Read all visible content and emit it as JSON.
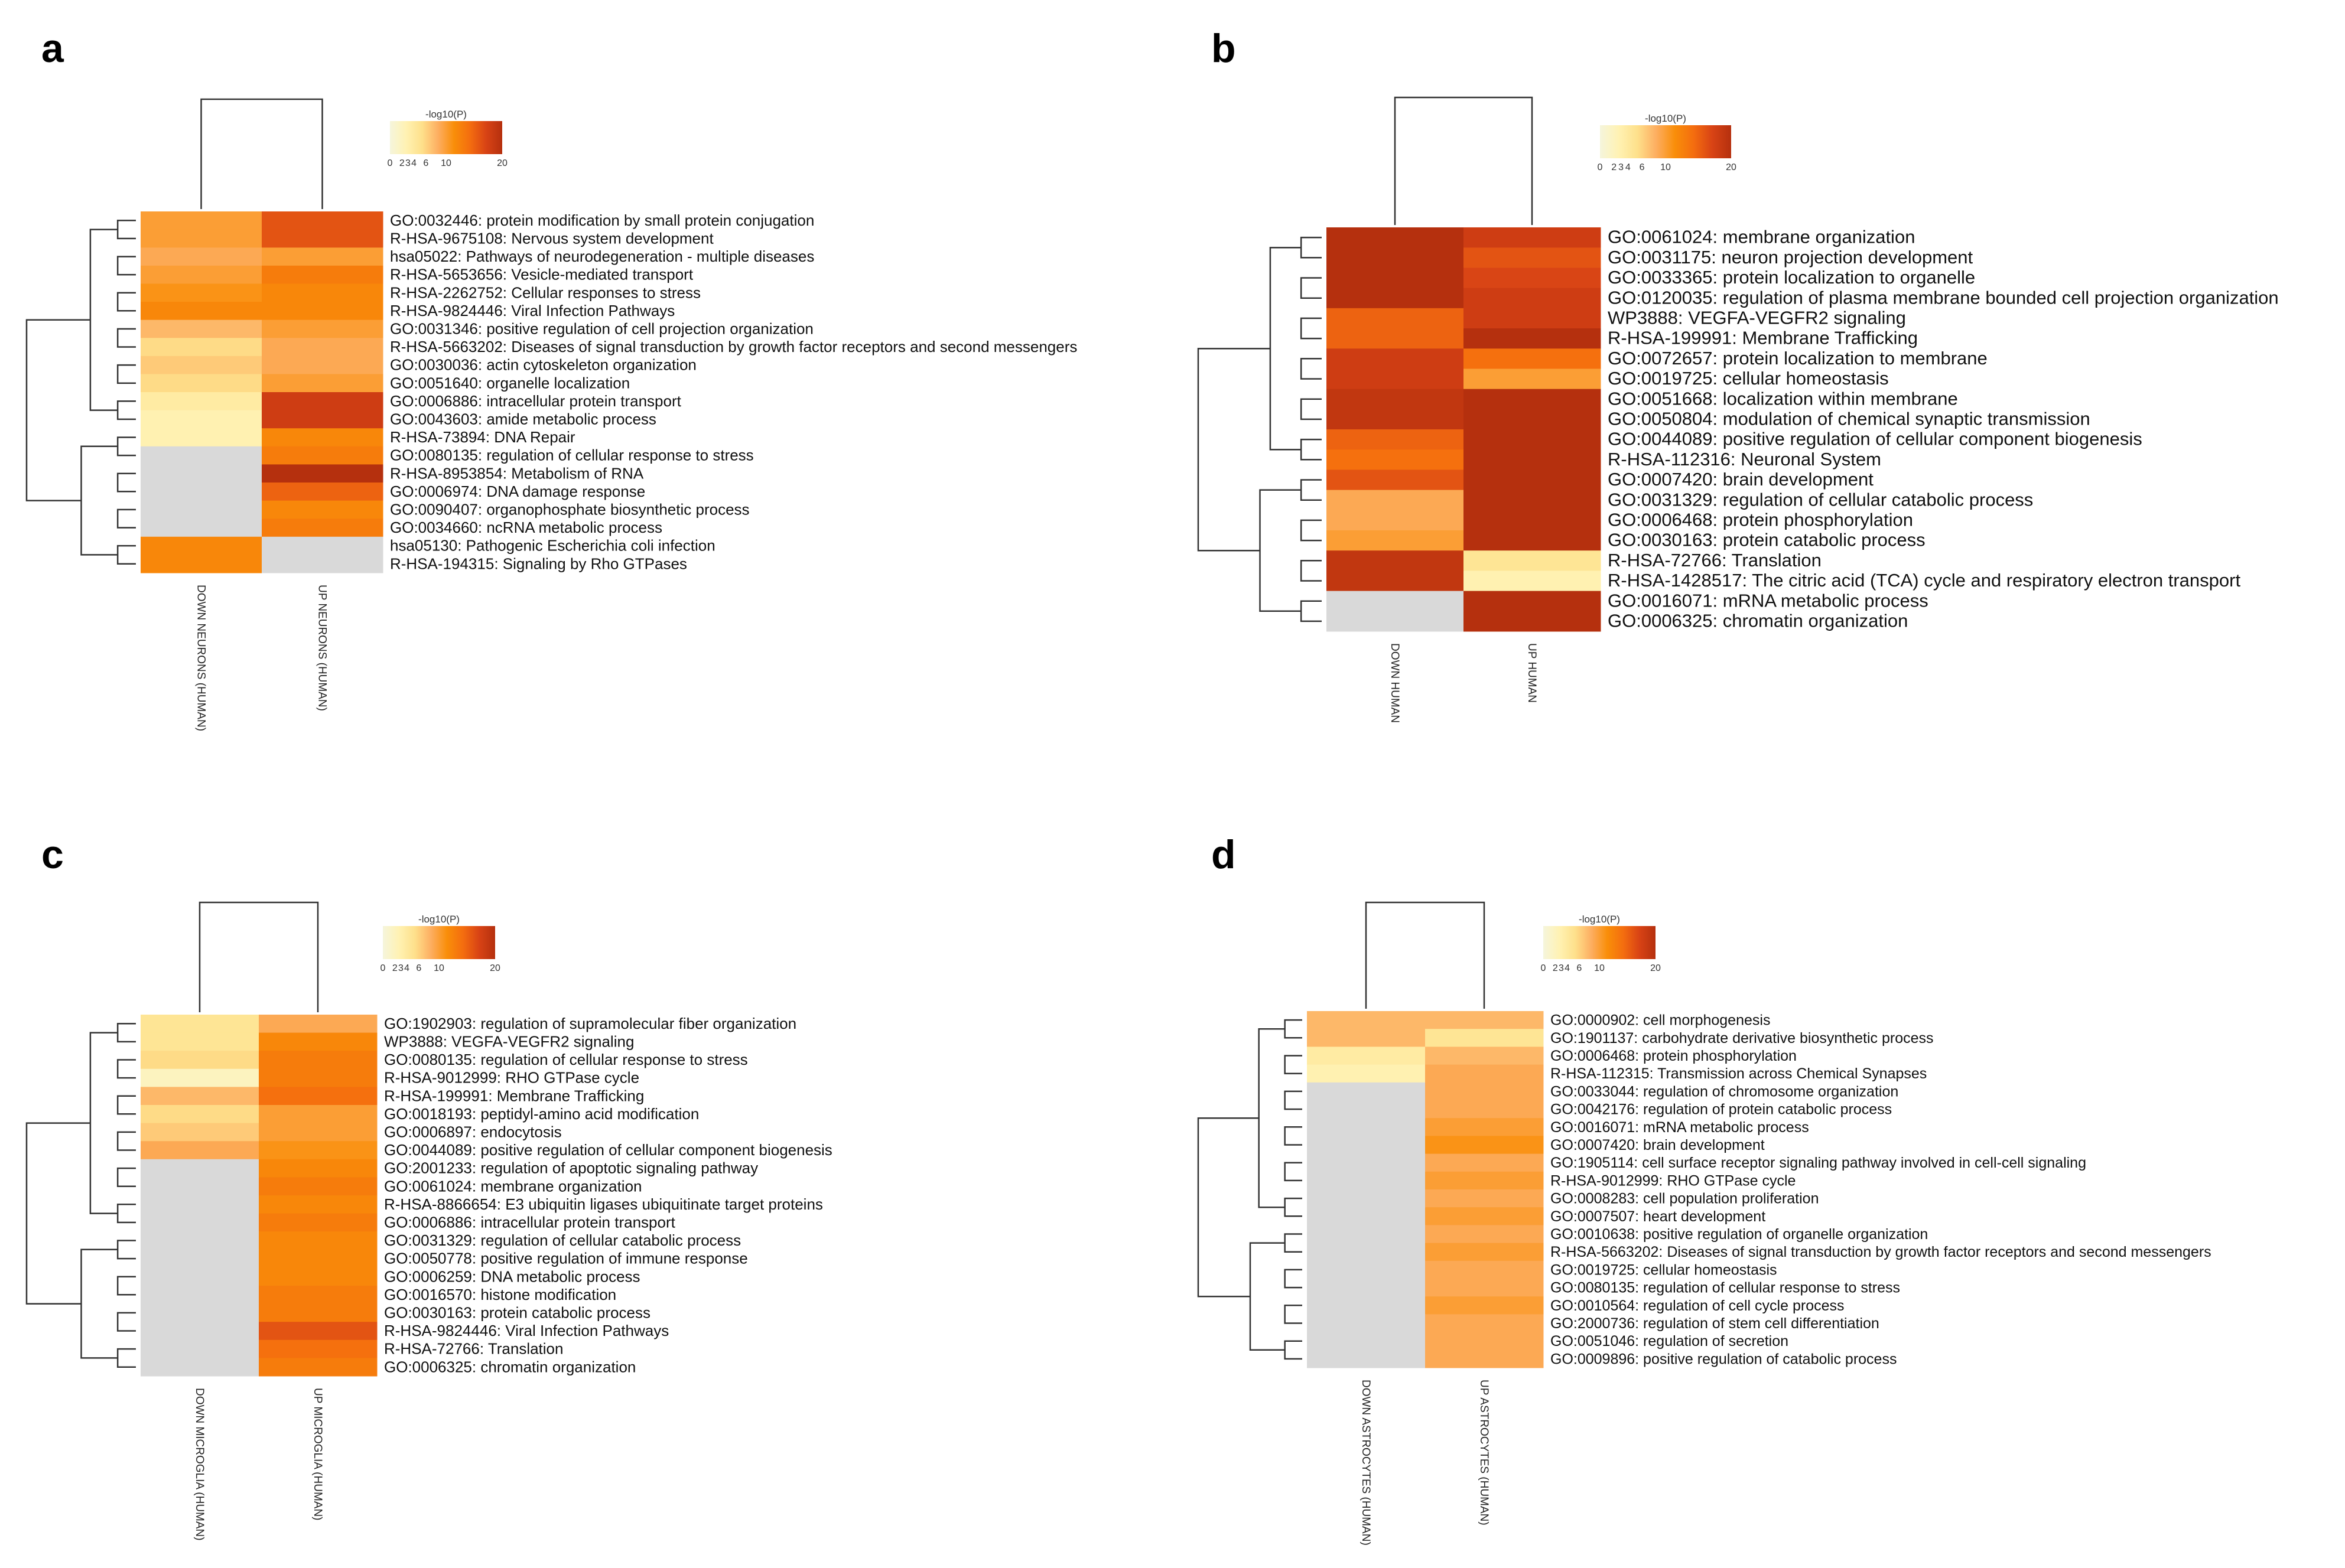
{
  "chart_data": [
    {
      "panel": "a",
      "type": "heatmap",
      "colorbar": {
        "title": "-log10(P)",
        "ticks": [
          "0",
          "2",
          "3",
          "4",
          "6",
          "10",
          "20"
        ],
        "range": [
          0,
          20
        ]
      },
      "columns": [
        "DOWN NEURONS (HUMAN)",
        "UP NEURONS (HUMAN)"
      ],
      "rows": [
        {
          "term": "GO:0032446: protein modification by small protein conjugation",
          "values": [
            10,
            16
          ]
        },
        {
          "term": "R-HSA-9675108: Nervous system development",
          "values": [
            10,
            16
          ]
        },
        {
          "term": "hsa05022: Pathways of neurodegeneration - multiple diseases",
          "values": [
            9,
            10
          ]
        },
        {
          "term": "R-HSA-5653656: Vesicle-mediated transport",
          "values": [
            10,
            13
          ]
        },
        {
          "term": "R-HSA-2262752: Cellular responses to stress",
          "values": [
            11,
            12
          ]
        },
        {
          "term": "R-HSA-9824446: Viral Infection Pathways",
          "values": [
            12,
            12
          ]
        },
        {
          "term": "GO:0031346: positive regulation of cell projection organization",
          "values": [
            8,
            10
          ]
        },
        {
          "term": "R-HSA-5663202: Diseases of signal transduction by growth factor receptors and second messengers",
          "values": [
            6,
            9
          ]
        },
        {
          "term": "GO:0030036: actin cytoskeleton organization",
          "values": [
            7,
            9
          ]
        },
        {
          "term": "GO:0051640: organelle localization",
          "values": [
            6,
            10
          ]
        },
        {
          "term": "GO:0006886: intracellular protein transport",
          "values": [
            4,
            18
          ]
        },
        {
          "term": "GO:0043603: amide metabolic process",
          "values": [
            3,
            18
          ]
        },
        {
          "term": "R-HSA-73894: DNA Repair",
          "values": [
            3,
            12
          ]
        },
        {
          "term": "GO:0080135: regulation of cellular response to stress",
          "values": [
            null,
            13
          ]
        },
        {
          "term": "R-HSA-8953854: Metabolism of RNA",
          "values": [
            null,
            20
          ]
        },
        {
          "term": "GO:0006974: DNA damage response",
          "values": [
            null,
            15
          ]
        },
        {
          "term": "GO:0090407: organophosphate biosynthetic process",
          "values": [
            null,
            12
          ]
        },
        {
          "term": "GO:0034660: ncRNA metabolic process",
          "values": [
            null,
            13
          ]
        },
        {
          "term": "hsa05130: Pathogenic Escherichia coli infection",
          "values": [
            12,
            null
          ]
        },
        {
          "term": "R-HSA-194315: Signaling by Rho GTPases",
          "values": [
            12,
            null
          ]
        }
      ]
    },
    {
      "panel": "b",
      "type": "heatmap",
      "colorbar": {
        "title": "-log10(P)",
        "ticks": [
          "0",
          "2",
          "3",
          "4",
          "6",
          "10",
          "20"
        ],
        "range": [
          0,
          20
        ]
      },
      "columns": [
        "DOWN HUMAN",
        "UP HUMAN"
      ],
      "rows": [
        {
          "term": "GO:0061024: membrane organization",
          "values": [
            20,
            18
          ]
        },
        {
          "term": "GO:0031175: neuron projection development",
          "values": [
            20,
            16
          ]
        },
        {
          "term": "GO:0033365: protein localization to organelle",
          "values": [
            20,
            17
          ]
        },
        {
          "term": "GO:0120035: regulation of plasma membrane bounded cell projection organization",
          "values": [
            20,
            18
          ]
        },
        {
          "term": "WP3888: VEGFA-VEGFR2 signaling",
          "values": [
            15,
            18
          ]
        },
        {
          "term": "R-HSA-199991: Membrane Trafficking",
          "values": [
            15,
            20
          ]
        },
        {
          "term": "GO:0072657: protein localization to membrane",
          "values": [
            18,
            14
          ]
        },
        {
          "term": "GO:0019725: cellular homeostasis",
          "values": [
            18,
            10
          ]
        },
        {
          "term": "GO:0051668: localization within membrane",
          "values": [
            19,
            20
          ]
        },
        {
          "term": "GO:0050804: modulation of chemical synaptic transmission",
          "values": [
            19,
            20
          ]
        },
        {
          "term": "GO:0044089: positive regulation of cellular component biogenesis",
          "values": [
            15,
            20
          ]
        },
        {
          "term": "R-HSA-112316: Neuronal System",
          "values": [
            14,
            20
          ]
        },
        {
          "term": "GO:0007420: brain development",
          "values": [
            16,
            20
          ]
        },
        {
          "term": "GO:0031329: regulation of cellular catabolic process",
          "values": [
            9,
            20
          ]
        },
        {
          "term": "GO:0006468: protein phosphorylation",
          "values": [
            9,
            20
          ]
        },
        {
          "term": "GO:0030163: protein catabolic process",
          "values": [
            10,
            20
          ]
        },
        {
          "term": "R-HSA-72766: Translation",
          "values": [
            19,
            5
          ]
        },
        {
          "term": "R-HSA-1428517: The citric acid (TCA) cycle and respiratory electron transport",
          "values": [
            19,
            3
          ]
        },
        {
          "term": "GO:0016071: mRNA metabolic process",
          "values": [
            null,
            20
          ]
        },
        {
          "term": "GO:0006325: chromatin organization",
          "values": [
            null,
            20
          ]
        }
      ]
    },
    {
      "panel": "c",
      "type": "heatmap",
      "colorbar": {
        "title": "-log10(P)",
        "ticks": [
          "0",
          "2",
          "3",
          "4",
          "6",
          "10",
          "20"
        ],
        "range": [
          0,
          20
        ]
      },
      "columns": [
        "DOWN MICROGLIA (HUMAN)",
        "UP MICROGLIA (HUMAN)"
      ],
      "rows": [
        {
          "term": "GO:1902903: regulation of supramolecular fiber organization",
          "values": [
            5,
            9
          ]
        },
        {
          "term": "WP3888: VEGFA-VEGFR2 signaling",
          "values": [
            5,
            12
          ]
        },
        {
          "term": "GO:0080135: regulation of cellular response to stress",
          "values": [
            6,
            13
          ]
        },
        {
          "term": "R-HSA-9012999: RHO GTPase cycle",
          "values": [
            2,
            13
          ]
        },
        {
          "term": "R-HSA-199991: Membrane Trafficking",
          "values": [
            8,
            14
          ]
        },
        {
          "term": "GO:0018193: peptidyl-amino acid modification",
          "values": [
            6,
            10
          ]
        },
        {
          "term": "GO:0006897: endocytosis",
          "values": [
            7,
            10
          ]
        },
        {
          "term": "GO:0044089: positive regulation of cellular component biogenesis",
          "values": [
            9,
            11
          ]
        },
        {
          "term": "GO:2001233: regulation of apoptotic signaling pathway",
          "values": [
            null,
            12
          ]
        },
        {
          "term": "GO:0061024: membrane organization",
          "values": [
            null,
            13
          ]
        },
        {
          "term": "R-HSA-8866654: E3 ubiquitin ligases ubiquitinate target proteins",
          "values": [
            null,
            12
          ]
        },
        {
          "term": "GO:0006886: intracellular protein transport",
          "values": [
            null,
            13
          ]
        },
        {
          "term": "GO:0031329: regulation of cellular catabolic process",
          "values": [
            null,
            12
          ]
        },
        {
          "term": "GO:0050778: positive regulation of immune response",
          "values": [
            null,
            12
          ]
        },
        {
          "term": "GO:0006259: DNA metabolic process",
          "values": [
            null,
            12
          ]
        },
        {
          "term": "GO:0016570: histone modification",
          "values": [
            null,
            13
          ]
        },
        {
          "term": "GO:0030163: protein catabolic process",
          "values": [
            null,
            13
          ]
        },
        {
          "term": "R-HSA-9824446: Viral Infection Pathways",
          "values": [
            null,
            16
          ]
        },
        {
          "term": "R-HSA-72766: Translation",
          "values": [
            null,
            14
          ]
        },
        {
          "term": "GO:0006325: chromatin organization",
          "values": [
            null,
            13
          ]
        }
      ]
    },
    {
      "panel": "d",
      "type": "heatmap",
      "colorbar": {
        "title": "-log10(P)",
        "ticks": [
          "0",
          "2",
          "3",
          "4",
          "6",
          "10",
          "20"
        ],
        "range": [
          0,
          20
        ]
      },
      "columns": [
        "DOWN ASTROCYTES (HUMAN)",
        "UP ASTROCYTES (HUMAN)"
      ],
      "rows": [
        {
          "term": "GO:0000902: cell morphogenesis",
          "values": [
            8,
            8
          ]
        },
        {
          "term": "GO:1901137: carbohydrate derivative biosynthetic process",
          "values": [
            8,
            5
          ]
        },
        {
          "term": "GO:0006468: protein phosphorylation",
          "values": [
            4,
            8
          ]
        },
        {
          "term": "R-HSA-112315: Transmission across Chemical Synapses",
          "values": [
            3,
            9
          ]
        },
        {
          "term": "GO:0033044: regulation of chromosome organization",
          "values": [
            null,
            9
          ]
        },
        {
          "term": "GO:0042176: regulation of protein catabolic process",
          "values": [
            null,
            9
          ]
        },
        {
          "term": "GO:0016071: mRNA metabolic process",
          "values": [
            null,
            10
          ]
        },
        {
          "term": "GO:0007420: brain development",
          "values": [
            null,
            11
          ]
        },
        {
          "term": "GO:1905114: cell surface receptor signaling pathway involved in cell-cell signaling",
          "values": [
            null,
            9
          ]
        },
        {
          "term": "R-HSA-9012999: RHO GTPase cycle",
          "values": [
            null,
            10
          ]
        },
        {
          "term": "GO:0008283: cell population proliferation",
          "values": [
            null,
            9
          ]
        },
        {
          "term": "GO:0007507: heart development",
          "values": [
            null,
            10
          ]
        },
        {
          "term": "GO:0010638: positive regulation of organelle organization",
          "values": [
            null,
            9
          ]
        },
        {
          "term": "R-HSA-5663202: Diseases of signal transduction by growth factor receptors and second messengers",
          "values": [
            null,
            10
          ]
        },
        {
          "term": "GO:0019725: cellular homeostasis",
          "values": [
            null,
            9
          ]
        },
        {
          "term": "GO:0080135: regulation of cellular response to stress",
          "values": [
            null,
            9
          ]
        },
        {
          "term": "GO:0010564: regulation of cell cycle process",
          "values": [
            null,
            10
          ]
        },
        {
          "term": "GO:2000736: regulation of stem cell differentiation",
          "values": [
            null,
            9
          ]
        },
        {
          "term": "GO:0051046: regulation of secretion",
          "values": [
            null,
            9
          ]
        },
        {
          "term": "GO:0009896: positive regulation of catabolic process",
          "values": [
            null,
            9
          ]
        }
      ]
    }
  ],
  "colors": {
    "missing": "#d9d9d9",
    "scale": [
      "#f5f5dc",
      "#fff2b3",
      "#fee08b",
      "#fdae61",
      "#f98e09",
      "#f46d0f",
      "#d84315",
      "#b5300e"
    ]
  }
}
